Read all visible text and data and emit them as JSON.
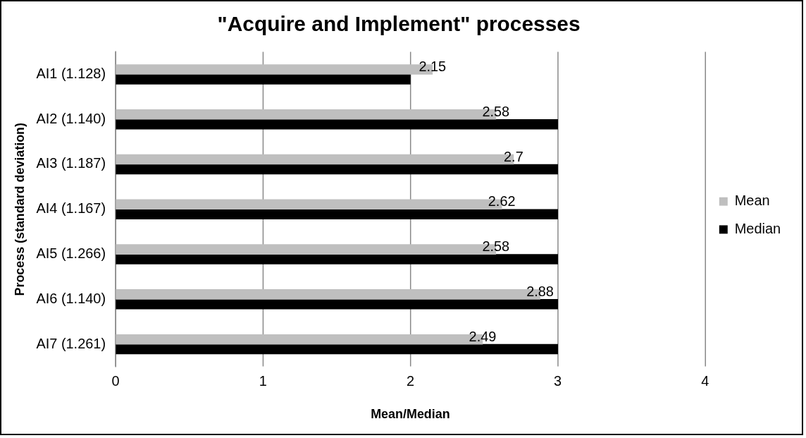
{
  "chart_data": {
    "type": "bar",
    "orientation": "horizontal",
    "title": "\"Acquire and Implement\" processes",
    "xlabel": "Mean/Median",
    "ylabel": "Process (standard deviation)",
    "categories": [
      "AI1 (1.128)",
      "AI2 (1.140)",
      "AI3 (1.187)",
      "AI4 (1.167)",
      "AI5 (1.266)",
      "AI6 (1.140)",
      "AI7 (1.261)"
    ],
    "series": [
      {
        "name": "Mean",
        "color": "#bfbfbf",
        "values": [
          2.15,
          2.58,
          2.7,
          2.62,
          2.58,
          2.88,
          2.49
        ],
        "value_labels": [
          "2.15",
          "2.58",
          "2.7",
          "2.62",
          "2.58",
          "2.88",
          "2.49"
        ]
      },
      {
        "name": "Median",
        "color": "#000000",
        "values": [
          2,
          3,
          3,
          3,
          3,
          3,
          3
        ]
      }
    ],
    "xlim": [
      0,
      4
    ],
    "xticks": [
      0,
      1,
      2,
      3,
      4
    ],
    "grid": "x",
    "legend": "right"
  }
}
